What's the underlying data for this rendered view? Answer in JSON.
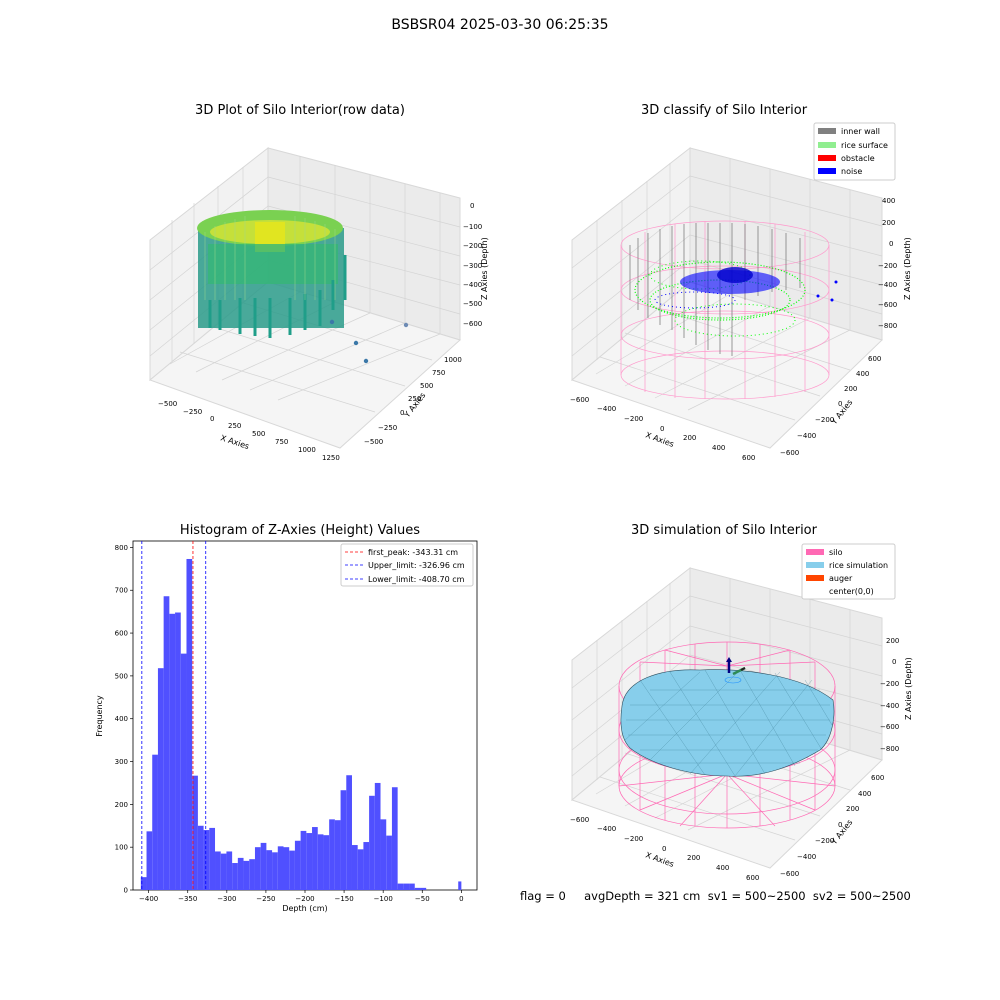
{
  "suptitle": "BSBSR04 2025-03-30 06:25:35",
  "panels": {
    "raw": {
      "title": "3D Plot of Silo Interior(row data)",
      "xlabel": "X Axies",
      "ylabel": "Y Axies",
      "zlabel": "Z Axies (Depth)",
      "xticks": [
        "−500",
        "−250",
        "0",
        "250",
        "500",
        "750",
        "1000",
        "1250"
      ],
      "yticks": [
        "−500",
        "−250",
        "0",
        "250",
        "500",
        "750",
        "1000"
      ],
      "zticks": [
        "0",
        "−100",
        "−200",
        "−300",
        "−400",
        "−500",
        "−600"
      ]
    },
    "classify": {
      "title": "3D classify of Silo Interior",
      "xlabel": "X Axies",
      "ylabel": "Y Axies",
      "zlabel": "Z Axies (Depth)",
      "xticks": [
        "−600",
        "−400",
        "−200",
        "0",
        "200",
        "400",
        "600"
      ],
      "yticks": [
        "−600",
        "−400",
        "−200",
        "0",
        "200",
        "400",
        "600"
      ],
      "zticks": [
        "400",
        "200",
        "0",
        "−200",
        "−400",
        "−600",
        "−800"
      ],
      "legend": [
        {
          "label": "inner wall",
          "color": "#808080"
        },
        {
          "label": "rice surface",
          "color": "#90ee90"
        },
        {
          "label": "obstacle",
          "color": "#ff0000"
        },
        {
          "label": "noise",
          "color": "#0000ff"
        }
      ]
    },
    "simulation": {
      "title": "3D simulation of Silo Interior",
      "xlabel": "X Axies",
      "ylabel": "Y Axies",
      "zlabel": "Z Axies (Depth)",
      "xticks": [
        "−600",
        "−400",
        "−200",
        "0",
        "200",
        "400",
        "600"
      ],
      "yticks": [
        "−600",
        "−400",
        "−200",
        "0",
        "200",
        "400",
        "600"
      ],
      "zticks": [
        "200",
        "0",
        "−200",
        "−400",
        "−600",
        "−800"
      ],
      "legend": [
        {
          "label": "silo",
          "color": "#ff69b4"
        },
        {
          "label": "rice simulation",
          "color": "#87ceeb"
        },
        {
          "label": "auger",
          "color": "#ff4500"
        },
        {
          "label": "center(0,0)",
          "color": ""
        }
      ]
    }
  },
  "status": "flag = 0     avgDepth = 321 cm  sv1 = 500~2500  sv2 = 500~2500",
  "chart_data": {
    "type": "bar",
    "title": "Histogram of Z-Axies (Height) Values",
    "xlabel": "Depth (cm)",
    "ylabel": "Frequency",
    "xlim": [
      -420,
      20
    ],
    "ylim": [
      0,
      815
    ],
    "xticks": [
      -400,
      -350,
      -300,
      -250,
      -200,
      -150,
      -100,
      -50,
      0
    ],
    "yticks": [
      0,
      100,
      200,
      300,
      400,
      500,
      600,
      700,
      800
    ],
    "bar_color": "#5050ff",
    "bins": [
      {
        "x0": -410.0,
        "x1": -402.7,
        "v": 30
      },
      {
        "x0": -402.7,
        "x1": -395.4,
        "v": 137
      },
      {
        "x0": -395.4,
        "x1": -388.1,
        "v": 316
      },
      {
        "x0": -388.1,
        "x1": -380.8,
        "v": 518
      },
      {
        "x0": -380.8,
        "x1": -373.5,
        "v": 686
      },
      {
        "x0": -373.5,
        "x1": -366.2,
        "v": 645
      },
      {
        "x0": -366.2,
        "x1": -358.9,
        "v": 648
      },
      {
        "x0": -358.9,
        "x1": -351.6,
        "v": 552
      },
      {
        "x0": -351.6,
        "x1": -344.3,
        "v": 773
      },
      {
        "x0": -344.3,
        "x1": -337.0,
        "v": 267
      },
      {
        "x0": -337.0,
        "x1": -329.7,
        "v": 150
      },
      {
        "x0": -329.7,
        "x1": -322.4,
        "v": 140
      },
      {
        "x0": -322.4,
        "x1": -315.1,
        "v": 145
      },
      {
        "x0": -315.1,
        "x1": -307.8,
        "v": 90
      },
      {
        "x0": -307.8,
        "x1": -300.5,
        "v": 85
      },
      {
        "x0": -300.5,
        "x1": -293.2,
        "v": 90
      },
      {
        "x0": -293.2,
        "x1": -285.9,
        "v": 63
      },
      {
        "x0": -285.9,
        "x1": -278.6,
        "v": 75
      },
      {
        "x0": -278.6,
        "x1": -271.3,
        "v": 68
      },
      {
        "x0": -271.3,
        "x1": -264.0,
        "v": 72
      },
      {
        "x0": -264.0,
        "x1": -256.7,
        "v": 100
      },
      {
        "x0": -256.7,
        "x1": -249.4,
        "v": 110
      },
      {
        "x0": -249.4,
        "x1": -242.1,
        "v": 93
      },
      {
        "x0": -242.1,
        "x1": -234.8,
        "v": 88
      },
      {
        "x0": -234.8,
        "x1": -227.5,
        "v": 102
      },
      {
        "x0": -227.5,
        "x1": -220.2,
        "v": 100
      },
      {
        "x0": -220.2,
        "x1": -212.9,
        "v": 92
      },
      {
        "x0": -212.9,
        "x1": -205.6,
        "v": 115
      },
      {
        "x0": -205.6,
        "x1": -198.3,
        "v": 138
      },
      {
        "x0": -198.3,
        "x1": -191.0,
        "v": 133
      },
      {
        "x0": -191.0,
        "x1": -183.7,
        "v": 147
      },
      {
        "x0": -183.7,
        "x1": -176.4,
        "v": 130
      },
      {
        "x0": -176.4,
        "x1": -169.1,
        "v": 128
      },
      {
        "x0": -169.1,
        "x1": -161.8,
        "v": 165
      },
      {
        "x0": -161.8,
        "x1": -154.5,
        "v": 163
      },
      {
        "x0": -154.5,
        "x1": -147.2,
        "v": 233
      },
      {
        "x0": -147.2,
        "x1": -139.9,
        "v": 268
      },
      {
        "x0": -139.9,
        "x1": -132.6,
        "v": 105
      },
      {
        "x0": -132.6,
        "x1": -125.3,
        "v": 95
      },
      {
        "x0": -125.3,
        "x1": -118.0,
        "v": 112
      },
      {
        "x0": -118.0,
        "x1": -110.7,
        "v": 220
      },
      {
        "x0": -110.7,
        "x1": -103.4,
        "v": 250
      },
      {
        "x0": -103.4,
        "x1": -96.1,
        "v": 165
      },
      {
        "x0": -96.1,
        "x1": -88.8,
        "v": 127
      },
      {
        "x0": -88.8,
        "x1": -81.5,
        "v": 240
      },
      {
        "x0": -81.5,
        "x1": -74.2,
        "v": 15
      },
      {
        "x0": -74.2,
        "x1": -66.9,
        "v": 15
      },
      {
        "x0": -66.9,
        "x1": -59.6,
        "v": 15
      },
      {
        "x0": -59.6,
        "x1": -52.3,
        "v": 5
      },
      {
        "x0": -52.3,
        "x1": -45.0,
        "v": 5
      },
      {
        "x0": -4.0,
        "x1": 0.0,
        "v": 20
      }
    ],
    "vlines": [
      {
        "label": "first_peak: -343.31 cm",
        "x": -343.31,
        "color": "#ff0000"
      },
      {
        "label": "Upper_limit: -326.96 cm",
        "x": -326.96,
        "color": "#0000ff"
      },
      {
        "label": "Lower_limit: -408.70 cm",
        "x": -408.7,
        "color": "#0000ff"
      }
    ],
    "legend": "top-right"
  }
}
